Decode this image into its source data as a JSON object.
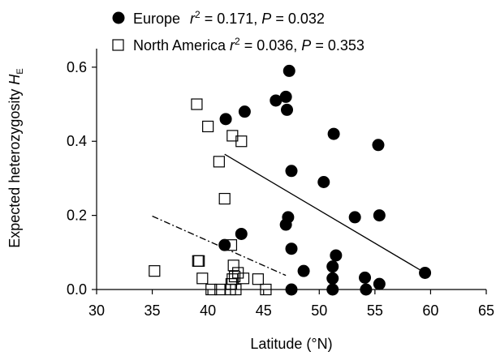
{
  "chart_data": {
    "type": "scatter",
    "xlabel": "Latitude (°N)",
    "ylabel": {
      "main": "Expected heterozygosity ",
      "italic": "H",
      "sub": "E"
    },
    "xlim": [
      30,
      65
    ],
    "ylim": [
      0,
      0.65
    ],
    "xticks": [
      "30",
      "35",
      "40",
      "45",
      "50",
      "55",
      "60",
      "65"
    ],
    "yticks": [
      "0.0",
      "0.2",
      "0.4",
      "0.6"
    ],
    "grid": false,
    "legend_position": "top-left",
    "series": [
      {
        "name": "Europe",
        "legend_stats": {
          "r2_label": "r",
          "r2_value": " = 0.171, ",
          "p_label": "P",
          "p_value": " = 0.032"
        },
        "marker": "filled-circle",
        "color": "#000000",
        "points": [
          [
            41.6,
            0.46
          ],
          [
            43.3,
            0.48
          ],
          [
            46.1,
            0.51
          ],
          [
            47.0,
            0.52
          ],
          [
            47.3,
            0.59
          ],
          [
            47.1,
            0.485
          ],
          [
            51.3,
            0.42
          ],
          [
            55.3,
            0.39
          ],
          [
            47.5,
            0.32
          ],
          [
            50.4,
            0.29
          ],
          [
            47.2,
            0.195
          ],
          [
            47.0,
            0.175
          ],
          [
            53.2,
            0.195
          ],
          [
            55.4,
            0.2
          ],
          [
            43.0,
            0.15
          ],
          [
            41.5,
            0.12
          ],
          [
            47.5,
            0.11
          ],
          [
            51.5,
            0.092
          ],
          [
            51.2,
            0.062
          ],
          [
            48.6,
            0.05
          ],
          [
            51.2,
            0.03
          ],
          [
            54.1,
            0.032
          ],
          [
            55.4,
            0.015
          ],
          [
            59.5,
            0.045
          ],
          [
            47.5,
            0.0
          ],
          [
            51.2,
            0.0
          ],
          [
            54.2,
            0.0
          ]
        ],
        "trend": {
          "x": [
            41.5,
            59.5
          ],
          "y": [
            0.365,
            0.045
          ],
          "style": "solid"
        }
      },
      {
        "name": "North America",
        "legend_stats": {
          "r2_label": "r",
          "r2_value": " = 0.036, ",
          "p_label": "P",
          "p_value": " = 0.353"
        },
        "marker": "open-square",
        "color": "#000000",
        "points": [
          [
            39.0,
            0.5
          ],
          [
            40.0,
            0.44
          ],
          [
            42.2,
            0.415
          ],
          [
            43.0,
            0.4
          ],
          [
            41.0,
            0.345
          ],
          [
            41.5,
            0.245
          ],
          [
            42.1,
            0.12
          ],
          [
            35.2,
            0.05
          ],
          [
            39.1,
            0.077
          ],
          [
            39.2,
            0.077
          ],
          [
            42.3,
            0.065
          ],
          [
            42.7,
            0.045
          ],
          [
            42.4,
            0.035
          ],
          [
            39.5,
            0.03
          ],
          [
            42.2,
            0.028
          ],
          [
            43.2,
            0.03
          ],
          [
            44.5,
            0.028
          ],
          [
            42.1,
            0.015
          ],
          [
            40.3,
            0.0
          ],
          [
            41.1,
            0.0
          ],
          [
            42.0,
            0.0
          ],
          [
            45.2,
            0.0
          ],
          [
            42.5,
            0.0
          ]
        ],
        "trend": {
          "x": [
            35.0,
            47.0
          ],
          "y": [
            0.198,
            0.038
          ],
          "style": "dash-dot"
        }
      }
    ]
  }
}
